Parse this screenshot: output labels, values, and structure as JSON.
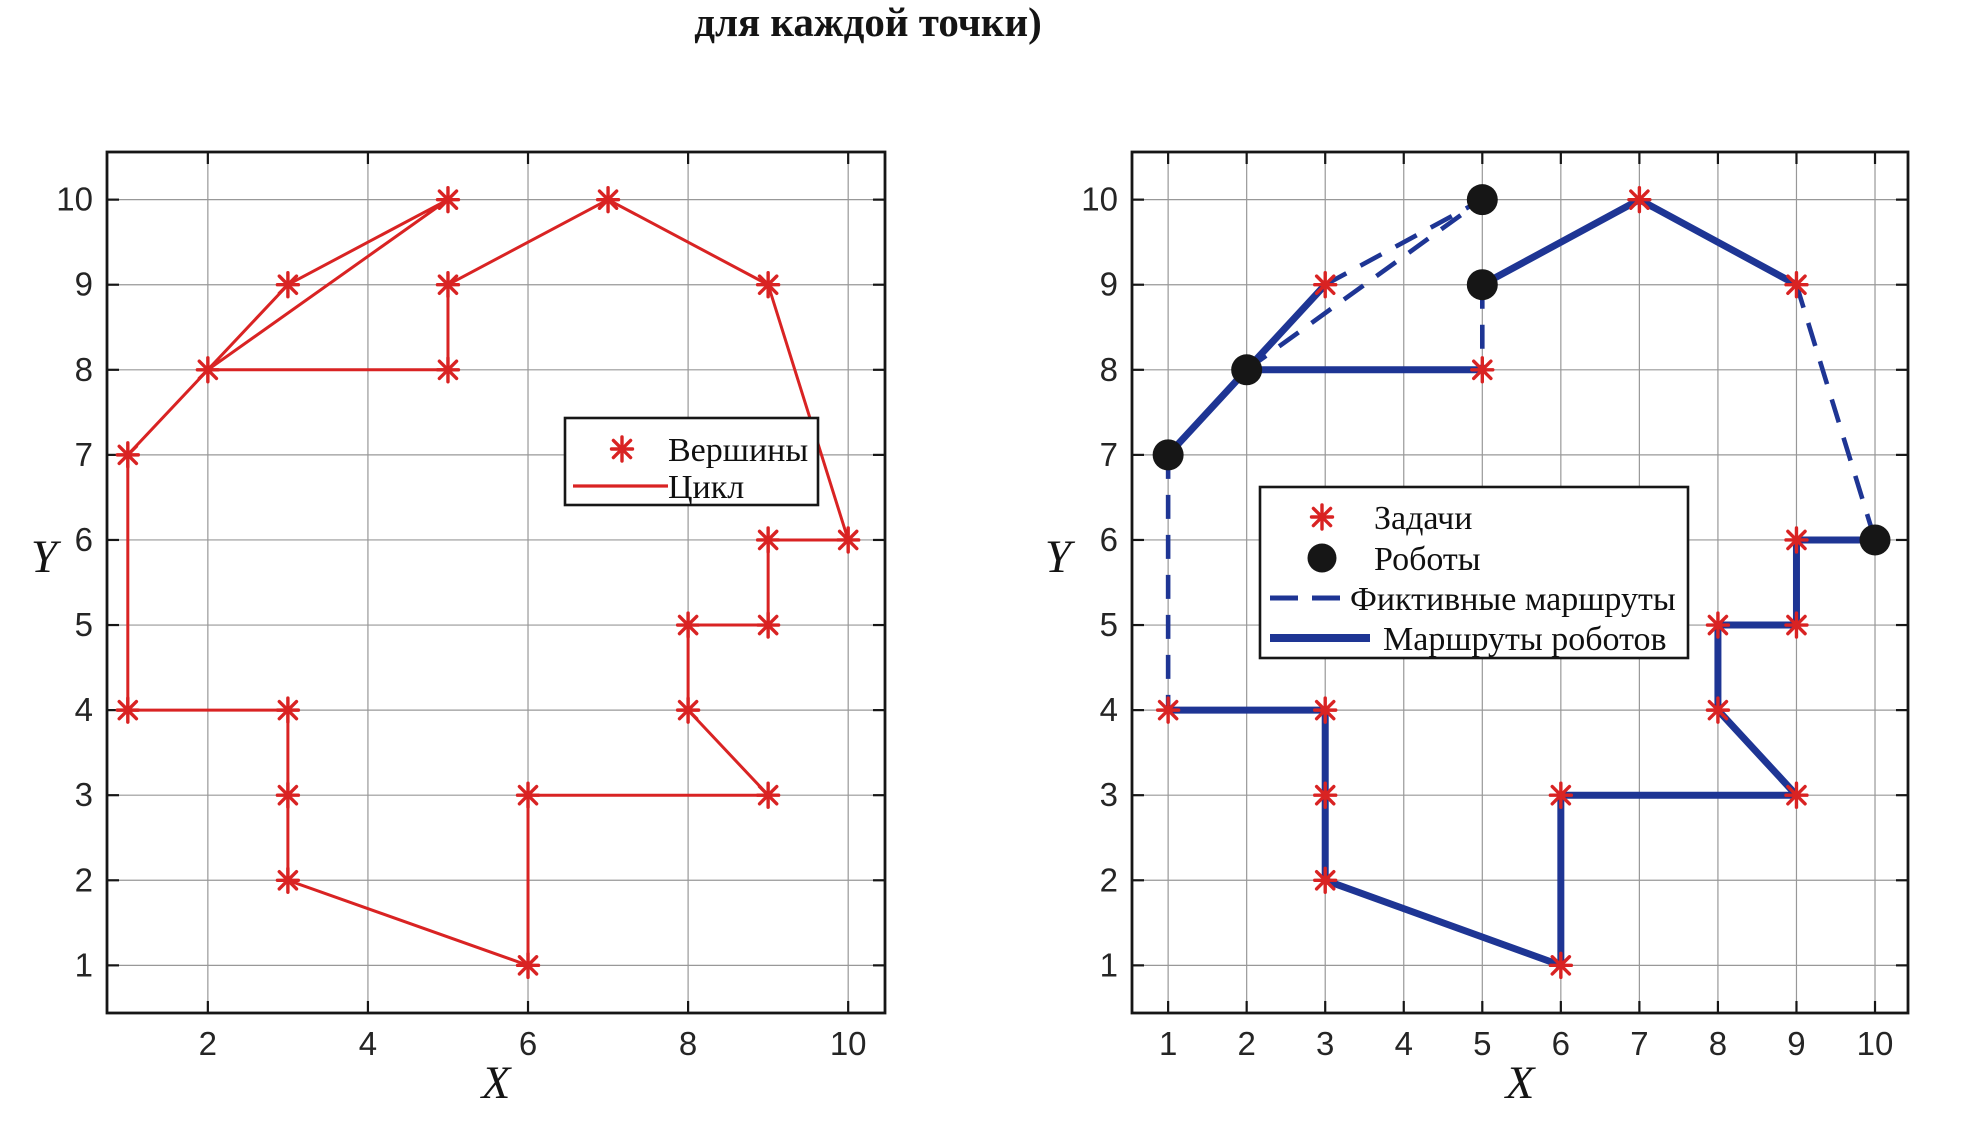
{
  "title": "для каждой точки)",
  "colors": {
    "vertex_red": "#d92323",
    "route_blue": "#1e3594",
    "robot_black": "#161616",
    "grid_gray": "#989898",
    "axis_black": "#161616",
    "tick_text": "#252525",
    "background": "#ffffff"
  },
  "chart_data": [
    {
      "type": "scatter",
      "panel": "left",
      "xlabel": "X",
      "ylabel": "Y",
      "xlim": [
        0.74,
        10.46
      ],
      "ylim": [
        0.44,
        10.56
      ],
      "x_ticks": [
        2,
        4,
        6,
        8,
        10
      ],
      "y_ticks": [
        1,
        2,
        3,
        4,
        5,
        6,
        7,
        8,
        9,
        10
      ],
      "grid": true,
      "legend": {
        "position": "middle-right",
        "entries": [
          {
            "marker": "asterisk",
            "color": "#d92323",
            "label": "Вершины"
          },
          {
            "marker": "solid-line",
            "color": "#d92323",
            "label": "Цикл"
          }
        ]
      },
      "series": [
        {
          "name": "Вершины",
          "marker": "asterisk",
          "color": "#d92323",
          "points": [
            [
              5,
              10
            ],
            [
              7,
              10
            ],
            [
              3,
              9
            ],
            [
              5,
              9
            ],
            [
              9,
              9
            ],
            [
              2,
              8
            ],
            [
              5,
              8
            ],
            [
              1,
              7
            ],
            [
              9,
              6
            ],
            [
              10,
              6
            ],
            [
              8,
              5
            ],
            [
              9,
              5
            ],
            [
              1,
              4
            ],
            [
              3,
              4
            ],
            [
              8,
              4
            ],
            [
              3,
              3
            ],
            [
              6,
              3
            ],
            [
              9,
              3
            ],
            [
              3,
              2
            ],
            [
              6,
              1
            ]
          ]
        },
        {
          "name": "Цикл",
          "line": "solid",
          "color": "#d92323",
          "points": [
            [
              1,
              7
            ],
            [
              2,
              8
            ],
            [
              3,
              9
            ],
            [
              5,
              10
            ],
            [
              2,
              8
            ],
            [
              5,
              8
            ],
            [
              5,
              9
            ],
            [
              7,
              10
            ],
            [
              9,
              9
            ],
            [
              10,
              6
            ],
            [
              9,
              6
            ],
            [
              9,
              5
            ],
            [
              8,
              5
            ],
            [
              8,
              4
            ],
            [
              9,
              3
            ],
            [
              6,
              3
            ],
            [
              6,
              1
            ],
            [
              3,
              2
            ],
            [
              3,
              3
            ],
            [
              3,
              4
            ],
            [
              1,
              4
            ],
            [
              1,
              7
            ]
          ]
        }
      ]
    },
    {
      "type": "scatter",
      "panel": "right",
      "xlabel": "X",
      "ylabel": "Y",
      "xlim": [
        0.54,
        10.42
      ],
      "ylim": [
        0.44,
        10.56
      ],
      "x_ticks": [
        1,
        2,
        3,
        4,
        5,
        6,
        7,
        8,
        9,
        10
      ],
      "y_ticks": [
        1,
        2,
        3,
        4,
        5,
        6,
        7,
        8,
        9,
        10
      ],
      "grid": true,
      "legend": {
        "position": "center",
        "entries": [
          {
            "marker": "asterisk",
            "color": "#d92323",
            "label": "Задачи"
          },
          {
            "marker": "circle",
            "color": "#161616",
            "label": "Роботы"
          },
          {
            "marker": "dashed-line",
            "color": "#1e3594",
            "label": "Фиктивные маршруты"
          },
          {
            "marker": "solid-line",
            "color": "#1e3594",
            "label": "Маршруты роботов"
          }
        ]
      },
      "series": [
        {
          "name": "Задачи",
          "marker": "asterisk",
          "color": "#d92323",
          "points": [
            [
              3,
              9
            ],
            [
              5,
              8
            ],
            [
              7,
              10
            ],
            [
              9,
              9
            ],
            [
              9,
              6
            ],
            [
              9,
              5
            ],
            [
              8,
              5
            ],
            [
              8,
              4
            ],
            [
              9,
              3
            ],
            [
              6,
              3
            ],
            [
              6,
              1
            ],
            [
              3,
              2
            ],
            [
              3,
              3
            ],
            [
              3,
              4
            ],
            [
              1,
              4
            ]
          ]
        },
        {
          "name": "Роботы",
          "marker": "circle",
          "color": "#161616",
          "points": [
            [
              1,
              7
            ],
            [
              2,
              8
            ],
            [
              5,
              9
            ],
            [
              5,
              10
            ],
            [
              10,
              6
            ]
          ]
        },
        {
          "name": "Фиктивные маршруты",
          "line": "dashed",
          "color": "#1e3594",
          "segments": [
            [
              [
                3,
                9
              ],
              [
                5,
                10
              ]
            ],
            [
              [
                2,
                8
              ],
              [
                5,
                10
              ]
            ],
            [
              [
                5,
                9
              ],
              [
                5,
                8
              ]
            ],
            [
              [
                9,
                9
              ],
              [
                10,
                6
              ]
            ],
            [
              [
                1,
                7
              ],
              [
                1,
                4
              ]
            ]
          ]
        },
        {
          "name": "Маршруты роботов",
          "line": "solid",
          "color": "#1e3594",
          "polylines": [
            [
              [
                1,
                7
              ],
              [
                2,
                8
              ],
              [
                3,
                9
              ]
            ],
            [
              [
                2,
                8
              ],
              [
                5,
                8
              ]
            ],
            [
              [
                5,
                9
              ],
              [
                7,
                10
              ],
              [
                9,
                9
              ]
            ],
            [
              [
                10,
                6
              ],
              [
                9,
                6
              ],
              [
                9,
                5
              ],
              [
                8,
                5
              ],
              [
                8,
                4
              ],
              [
                9,
                3
              ],
              [
                6,
                3
              ],
              [
                6,
                1
              ],
              [
                3,
                2
              ],
              [
                3,
                3
              ],
              [
                3,
                4
              ],
              [
                1,
                4
              ]
            ]
          ]
        }
      ]
    }
  ]
}
